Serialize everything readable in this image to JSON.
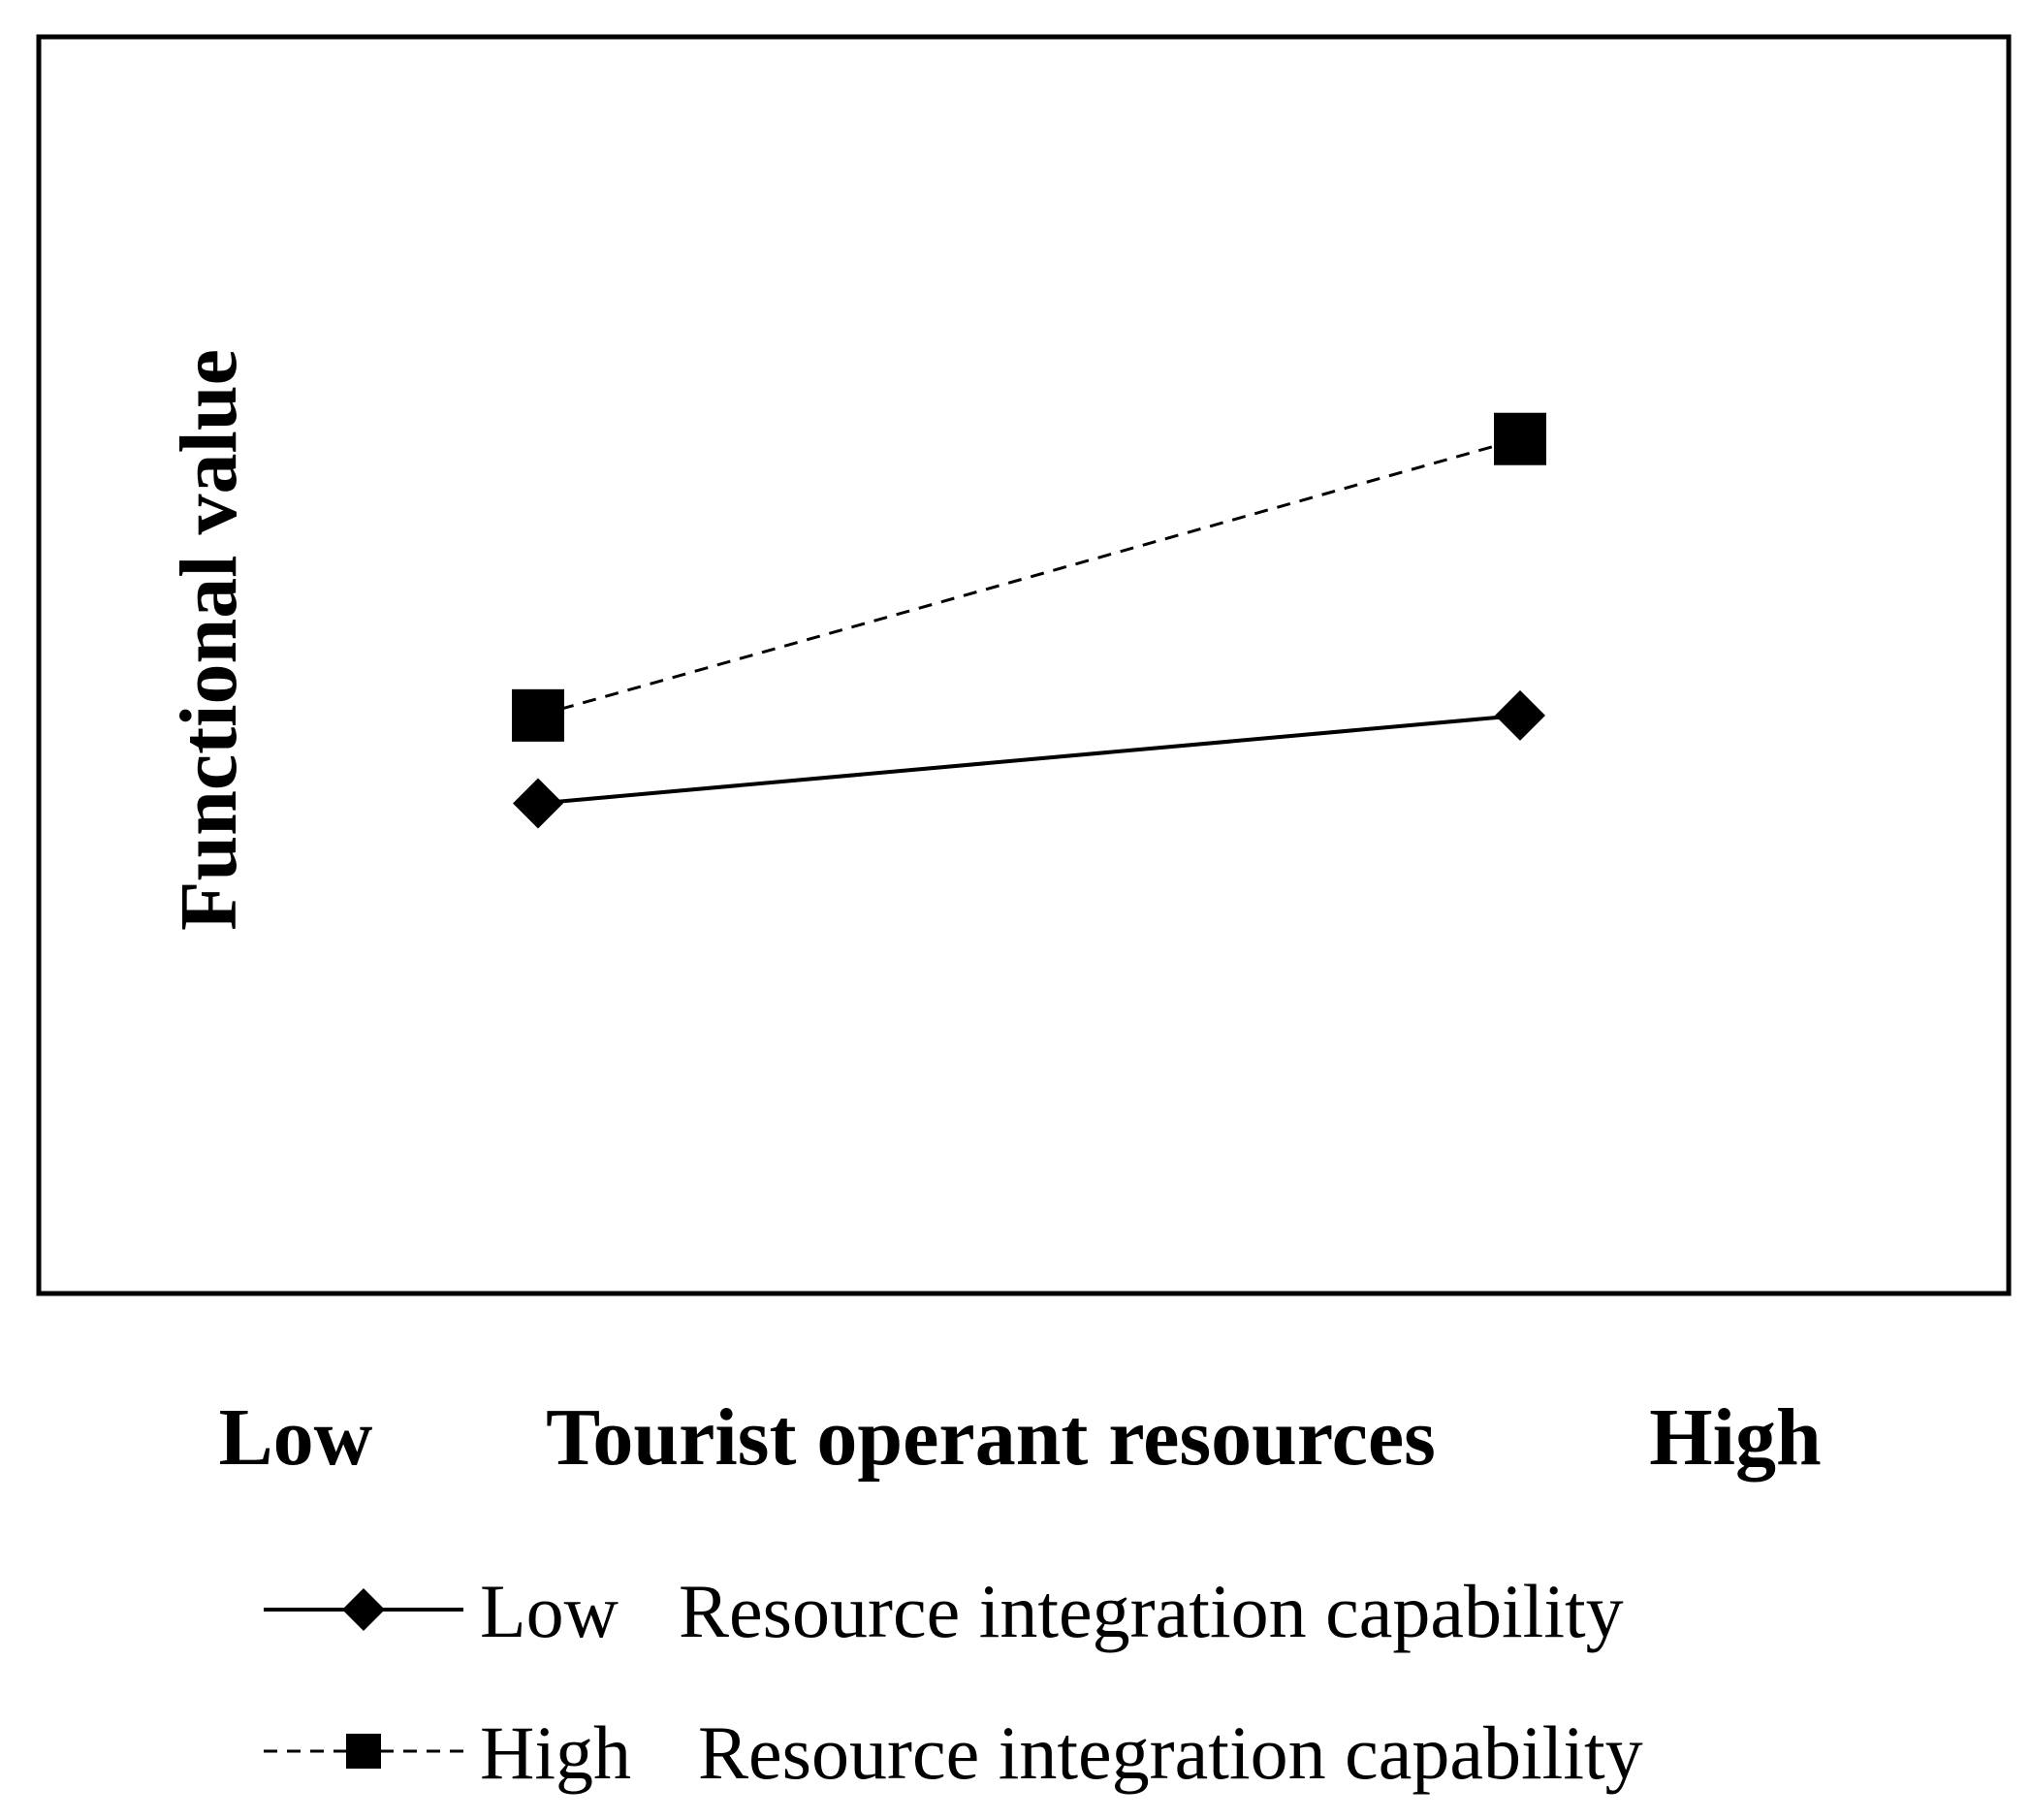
{
  "chart_data": {
    "type": "line",
    "title": "",
    "ylabel": "Functional value",
    "xlabel": "Tourist operant resources",
    "x_tick_labels": {
      "low": "Low",
      "high": "High"
    },
    "categories": [
      "Low",
      "High"
    ],
    "ylim": [
      0,
      10
    ],
    "grid": false,
    "legend_position": "bottom",
    "series": [
      {
        "name": "Low  Resource integration capability",
        "legend_level": "Low",
        "legend_label": "Resource integration capability",
        "values": [
          3.9,
          4.6
        ],
        "marker": "diamond",
        "line_style": "solid"
      },
      {
        "name": "High  Resource integration capability",
        "legend_level": "High",
        "legend_label": "Resource integration capability",
        "values": [
          4.6,
          6.8
        ],
        "marker": "square",
        "line_style": "dashed"
      }
    ],
    "colors": {
      "line": "#000000",
      "background": "#ffffff"
    }
  }
}
